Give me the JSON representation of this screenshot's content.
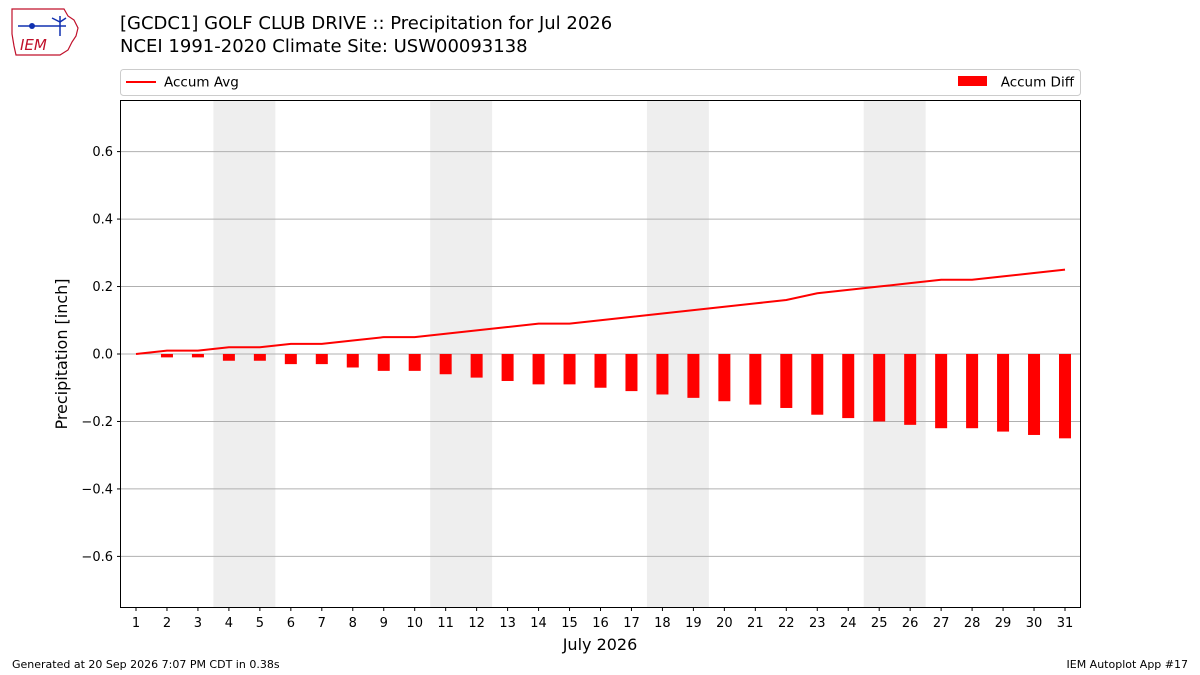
{
  "header": {
    "logo_text": "IEM",
    "title_line1": "[GCDC1] GOLF CLUB DRIVE :: Precipitation for Jul 2026",
    "title_line2": "NCEI 1991-2020 Climate Site: USW00093138"
  },
  "footer": {
    "generated": "Generated at 20 Sep 2026 7:07 PM CDT in 0.38s",
    "app": "IEM Autoplot App #17"
  },
  "colors": {
    "series": "#ff0000",
    "weekend_band": "#eeeeee",
    "grid": "#b0b0b0",
    "logo": "#c0102a"
  },
  "chart_data": {
    "type": "bar",
    "xlabel": "July 2026",
    "ylabel": "Precipitation [inch]",
    "ylim": [
      -0.75,
      0.75
    ],
    "yticks": [
      -0.6,
      -0.4,
      -0.2,
      0.0,
      0.2,
      0.4,
      0.6
    ],
    "ytick_labels": [
      "−0.6",
      "−0.4",
      "−0.2",
      "0.0",
      "0.2",
      "0.4",
      "0.6"
    ],
    "grid": "horizontal",
    "legend_placement": "top, above plot",
    "categories": [
      "1",
      "2",
      "3",
      "4",
      "5",
      "6",
      "7",
      "8",
      "9",
      "10",
      "11",
      "12",
      "13",
      "14",
      "15",
      "16",
      "17",
      "18",
      "19",
      "20",
      "21",
      "22",
      "23",
      "24",
      "25",
      "26",
      "27",
      "28",
      "29",
      "30",
      "31"
    ],
    "weekend_days": [
      [
        4,
        5
      ],
      [
        11,
        12
      ],
      [
        18,
        19
      ],
      [
        25,
        26
      ]
    ],
    "series": [
      {
        "name": "Accum Avg",
        "type": "line",
        "values": [
          0.0,
          0.01,
          0.01,
          0.02,
          0.02,
          0.03,
          0.03,
          0.04,
          0.05,
          0.05,
          0.06,
          0.07,
          0.08,
          0.09,
          0.09,
          0.1,
          0.11,
          0.12,
          0.13,
          0.14,
          0.15,
          0.16,
          0.18,
          0.19,
          0.2,
          0.21,
          0.22,
          0.22,
          0.23,
          0.24,
          0.25
        ]
      },
      {
        "name": "Accum Diff",
        "type": "bar",
        "values": [
          0.0,
          -0.01,
          -0.01,
          -0.02,
          -0.02,
          -0.03,
          -0.03,
          -0.04,
          -0.05,
          -0.05,
          -0.06,
          -0.07,
          -0.08,
          -0.09,
          -0.09,
          -0.1,
          -0.11,
          -0.12,
          -0.13,
          -0.14,
          -0.15,
          -0.16,
          -0.18,
          -0.19,
          -0.2,
          -0.21,
          -0.22,
          -0.22,
          -0.23,
          -0.24,
          -0.25
        ]
      }
    ]
  }
}
